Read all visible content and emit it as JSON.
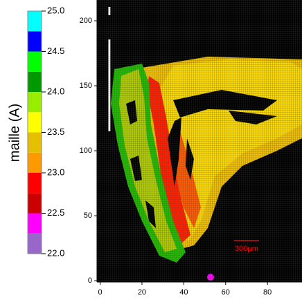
{
  "chart_data": {
    "type": "heatmap",
    "colorbar_label": "maille (A)",
    "levels": [
      22,
      22.25,
      22.5,
      22.75,
      23,
      23.25,
      23.5,
      23.75,
      24,
      24.25,
      24.5,
      24.75,
      25
    ],
    "colors": [
      "#9966cc",
      "#ff00ff",
      "#cc0000",
      "#ff0000",
      "#ff9900",
      "#e6c000",
      "#ffff00",
      "#99ee00",
      "#009900",
      "#00ff00",
      "#0000ff",
      "#00ffff"
    ],
    "cticks": [
      {
        "value": 22,
        "label": "22.0"
      },
      {
        "value": 22.5,
        "label": "22.5"
      },
      {
        "value": 23,
        "label": "23.0"
      },
      {
        "value": 23.5,
        "label": "23.5"
      },
      {
        "value": 24,
        "label": "24.0"
      },
      {
        "value": 24.5,
        "label": "24.5"
      },
      {
        "value": 25,
        "label": "25.0"
      }
    ],
    "xlim": [
      -1.5,
      96.5
    ],
    "xticks": [
      0,
      20,
      40,
      60,
      80
    ],
    "ylim": [
      -1,
      216
    ],
    "yticks": [
      0,
      50,
      100,
      150,
      200
    ],
    "annotation": "300µm"
  }
}
